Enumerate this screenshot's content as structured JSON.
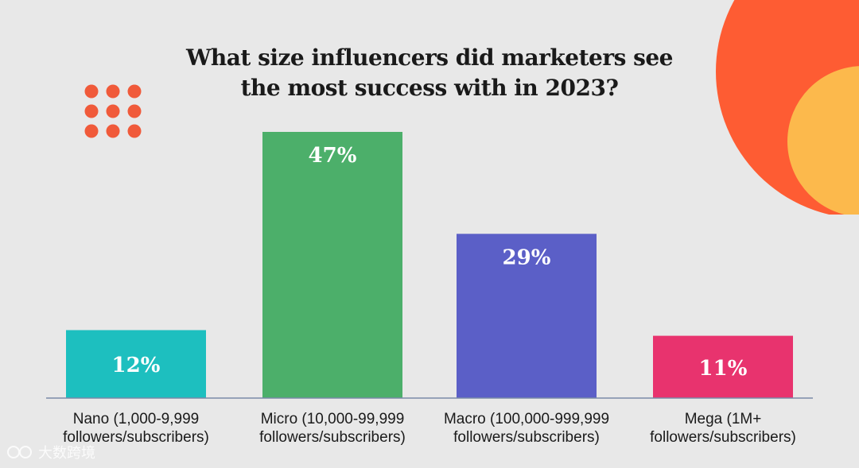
{
  "chart_data": {
    "type": "bar",
    "title": [
      "What size influencers did marketers see",
      "the most success with in 2023?"
    ],
    "categories": [
      [
        "Nano (1,000-9,999",
        "followers/subscribers)"
      ],
      [
        "Micro (10,000-99,999",
        "followers/subscribers)"
      ],
      [
        "Macro (100,000-999,999",
        "followers/subscribers)"
      ],
      [
        "Mega (1M+",
        "followers/subscribers)"
      ]
    ],
    "values": [
      12,
      47,
      29,
      11
    ],
    "value_labels": [
      "12%",
      "47%",
      "29%",
      "11%"
    ],
    "colors": [
      "#1dbfbf",
      "#4caf6a",
      "#5b5fc7",
      "#e8336e"
    ],
    "ylim": [
      0,
      47
    ],
    "grid": false,
    "legend": "none"
  },
  "decor": {
    "dots_color": "#f05a3a",
    "circle_colors": [
      "#fe5c33",
      "#fcb94c"
    ],
    "background": "#e8e8e8",
    "axis_color": "#7a8aa8"
  },
  "watermark": {
    "text": "大数跨境",
    "icon": "brand-logo-icon"
  }
}
